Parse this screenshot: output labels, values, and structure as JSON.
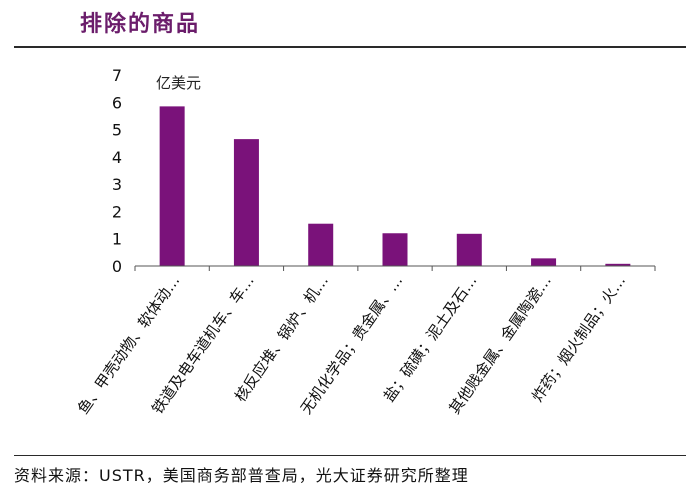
{
  "page": {
    "title": "排除的商品",
    "source": "资料来源：USTR，美国商务部普查局，光大证券研究所整理"
  },
  "chart_data": {
    "type": "bar",
    "unit_label": "亿美元",
    "categories": [
      "鱼、甲壳动物、软体动…",
      "铁道及电车道机车、车…",
      "核反应堆、锅炉、机…",
      "无机化学品；贵金属、…",
      "盐；硫磺；泥土及石…",
      "其他贱金属、金属陶瓷…",
      "炸药；烟火制品；火…"
    ],
    "values": [
      5.85,
      4.65,
      1.55,
      1.2,
      1.18,
      0.28,
      0.08
    ],
    "ylim": [
      0,
      7
    ],
    "yticks": [
      "0",
      "1",
      "2",
      "3",
      "4",
      "5",
      "6",
      "7"
    ],
    "bar_color": "#7a127a",
    "grid": false
  }
}
